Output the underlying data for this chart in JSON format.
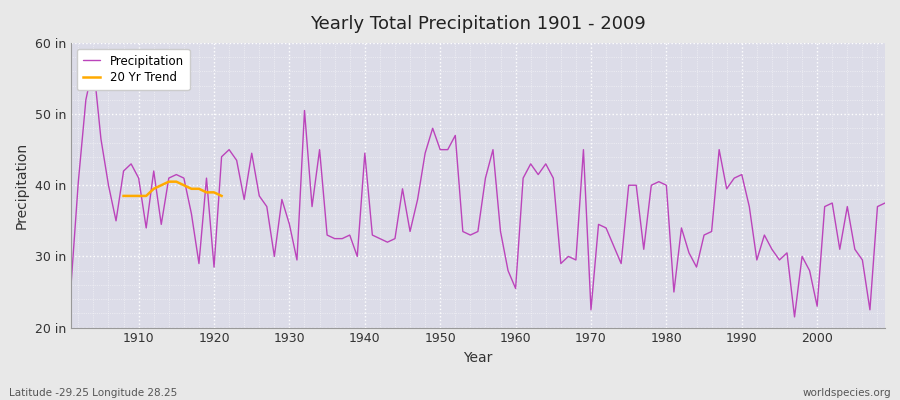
{
  "title": "Yearly Total Precipitation 1901 - 2009",
  "xlabel": "Year",
  "ylabel": "Precipitation",
  "bottom_left_label": "Latitude -29.25 Longitude 28.25",
  "bottom_right_label": "worldspecies.org",
  "ylim": [
    20,
    60
  ],
  "yticks": [
    20,
    30,
    40,
    50,
    60
  ],
  "ytick_labels": [
    "20 in",
    "30 in",
    "40 in",
    "50 in",
    "60 in"
  ],
  "precip_color": "#bb44bb",
  "trend_color": "#ffaa00",
  "fig_bg_color": "#e8e8e8",
  "plot_bg_color": "#dcdce8",
  "grid_color": "#ffffff",
  "years": [
    1901,
    1902,
    1903,
    1904,
    1905,
    1906,
    1907,
    1908,
    1909,
    1910,
    1911,
    1912,
    1913,
    1914,
    1915,
    1916,
    1917,
    1918,
    1919,
    1920,
    1921,
    1922,
    1923,
    1924,
    1925,
    1926,
    1927,
    1928,
    1929,
    1930,
    1931,
    1932,
    1933,
    1934,
    1935,
    1936,
    1937,
    1938,
    1939,
    1940,
    1941,
    1942,
    1943,
    1944,
    1945,
    1946,
    1947,
    1948,
    1949,
    1950,
    1951,
    1952,
    1953,
    1954,
    1955,
    1956,
    1957,
    1958,
    1959,
    1960,
    1961,
    1962,
    1963,
    1964,
    1965,
    1966,
    1967,
    1968,
    1969,
    1970,
    1971,
    1972,
    1973,
    1974,
    1975,
    1976,
    1977,
    1978,
    1979,
    1980,
    1981,
    1982,
    1983,
    1984,
    1985,
    1986,
    1987,
    1988,
    1989,
    1990,
    1991,
    1992,
    1993,
    1994,
    1995,
    1996,
    1997,
    1998,
    1999,
    2000,
    2001,
    2002,
    2003,
    2004,
    2005,
    2006,
    2007,
    2008,
    2009
  ],
  "precip": [
    25.5,
    40.5,
    52.0,
    57.0,
    46.5,
    40.0,
    35.0,
    42.0,
    43.0,
    41.0,
    34.0,
    42.0,
    34.5,
    41.0,
    41.5,
    41.0,
    36.0,
    29.0,
    41.0,
    28.5,
    44.0,
    45.0,
    43.5,
    38.0,
    44.5,
    38.5,
    37.0,
    30.0,
    38.0,
    34.5,
    29.5,
    50.5,
    37.0,
    45.0,
    33.0,
    32.5,
    32.5,
    33.0,
    30.0,
    44.5,
    33.0,
    32.5,
    32.0,
    32.5,
    39.5,
    33.5,
    38.0,
    44.5,
    48.0,
    45.0,
    45.0,
    47.0,
    33.5,
    33.0,
    33.5,
    41.0,
    45.0,
    33.5,
    28.0,
    25.5,
    41.0,
    43.0,
    41.5,
    43.0,
    41.0,
    29.0,
    30.0,
    29.5,
    45.0,
    22.5,
    34.5,
    34.0,
    31.5,
    29.0,
    40.0,
    40.0,
    31.0,
    40.0,
    40.5,
    40.0,
    25.0,
    34.0,
    30.5,
    28.5,
    33.0,
    33.5,
    45.0,
    39.5,
    41.0,
    41.5,
    37.0,
    29.5,
    33.0,
    31.0,
    29.5,
    30.5,
    21.5,
    30.0,
    28.0,
    23.0,
    37.0,
    37.5,
    31.0,
    37.0,
    31.0,
    29.5,
    22.5,
    37.0,
    37.5
  ],
  "trend_years": [
    1908,
    1909,
    1910,
    1911,
    1912,
    1913,
    1914,
    1915,
    1916,
    1917,
    1918,
    1919,
    1920,
    1921
  ],
  "trend_values": [
    38.5,
    38.5,
    38.5,
    38.5,
    39.5,
    40.0,
    40.5,
    40.5,
    40.0,
    39.5,
    39.5,
    39.0,
    39.0,
    38.5
  ]
}
